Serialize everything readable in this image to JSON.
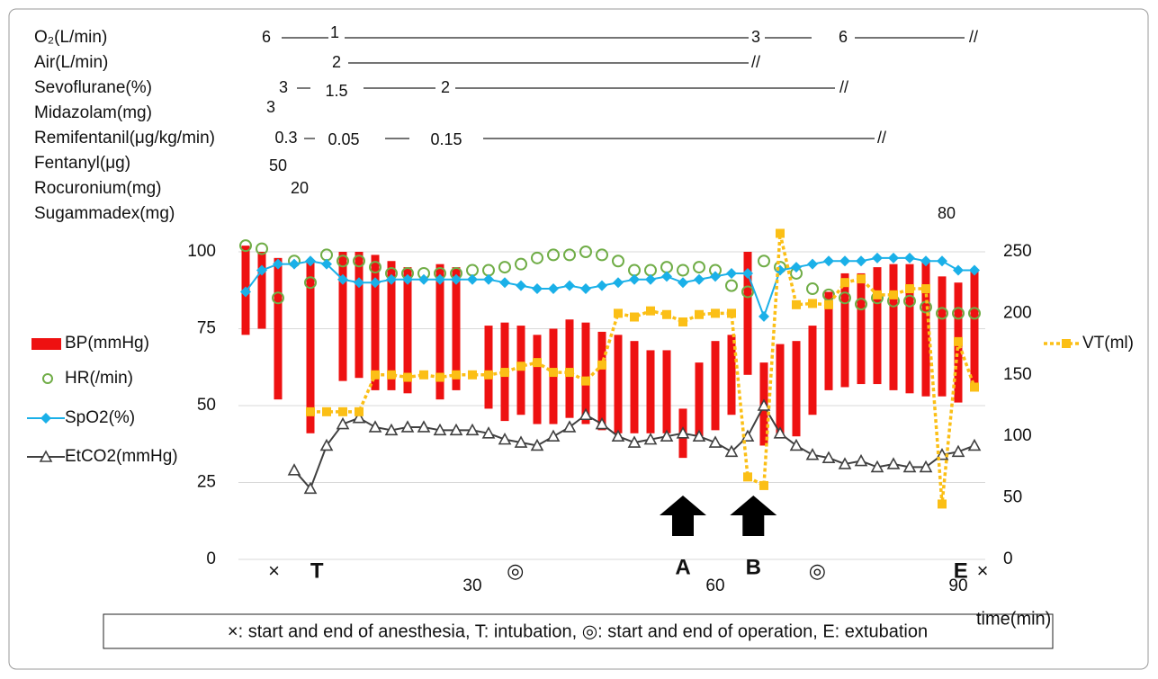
{
  "drugs": [
    {
      "name": "O₂(L/min)",
      "items": [
        "6",
        "1",
        "3",
        "6",
        "//"
      ]
    },
    {
      "name": "Air(L/min)",
      "items": [
        "2",
        "//"
      ]
    },
    {
      "name": "Sevoflurane(%)",
      "items": [
        "3",
        "1.5",
        "2",
        "//"
      ]
    },
    {
      "name": "Midazolam(mg)",
      "items": [
        "3"
      ]
    },
    {
      "name": "Remifentanil(μg/kg/min)",
      "items": [
        "0.3",
        "0.05",
        "0.15",
        "//"
      ]
    },
    {
      "name": "Fentanyl(μg)",
      "items": [
        "50"
      ]
    },
    {
      "name": "Rocuronium(mg)",
      "items": [
        "20"
      ]
    },
    {
      "name": "Sugammadex(mg)",
      "items": [
        "80"
      ]
    }
  ],
  "chart_data": {
    "type": "combo",
    "x": [
      2,
      4,
      6,
      8,
      10,
      12,
      14,
      16,
      18,
      20,
      22,
      24,
      26,
      28,
      30,
      32,
      34,
      36,
      38,
      40,
      42,
      44,
      46,
      48,
      50,
      52,
      54,
      56,
      58,
      60,
      62,
      64,
      66,
      68,
      70,
      72,
      74,
      76,
      78,
      80,
      82,
      84,
      86,
      88,
      90,
      92
    ],
    "xlim": [
      0,
      93
    ],
    "xticks": [
      30,
      60,
      90
    ],
    "xlabel": "time(min)",
    "ylim": [
      0,
      100
    ],
    "yticks": [
      0,
      25,
      50,
      75,
      100
    ],
    "y2lim": [
      0,
      250
    ],
    "y2ticks": [
      0,
      50,
      100,
      150,
      200,
      250
    ],
    "grid": true,
    "series": [
      {
        "name": "BP(mmHg)",
        "type": "range_bar",
        "color": "#ee1111",
        "high": [
          102,
          100,
          98,
          null,
          97,
          null,
          100,
          100,
          99,
          97,
          95,
          null,
          96,
          95,
          null,
          76,
          77,
          76,
          73,
          75,
          78,
          77,
          74,
          73,
          71,
          68,
          68,
          49,
          64,
          71,
          73,
          100,
          64,
          70,
          71,
          76,
          87,
          93,
          93,
          95,
          96,
          96,
          97,
          92,
          90,
          94
        ],
        "low": [
          73,
          75,
          52,
          null,
          41,
          null,
          58,
          59,
          55,
          55,
          54,
          null,
          52,
          55,
          null,
          49,
          45,
          47,
          44,
          44,
          46,
          44,
          42,
          41,
          41,
          41,
          41,
          33,
          40,
          42,
          47,
          60,
          37,
          40,
          40,
          47,
          55,
          56,
          57,
          57,
          55,
          54,
          53,
          53,
          51,
          57
        ]
      },
      {
        "name": "HR(/min)",
        "type": "scatter",
        "color": "#70ad47",
        "values": [
          102,
          101,
          85,
          97,
          90,
          99,
          97,
          97,
          95,
          93,
          93,
          93,
          93,
          93,
          94,
          94,
          95,
          96,
          98,
          99,
          99,
          100,
          99,
          97,
          94,
          94,
          95,
          94,
          95,
          94,
          89,
          87,
          97,
          95,
          93,
          88,
          86,
          85,
          83,
          85,
          84,
          84,
          82,
          80,
          80,
          80
        ]
      },
      {
        "name": "SpO2(%)",
        "type": "line",
        "color": "#1ab0e8",
        "values": [
          87,
          94,
          96,
          96,
          97,
          96,
          91,
          90,
          90,
          91,
          91,
          91,
          91,
          91,
          91,
          91,
          90,
          89,
          88,
          88,
          89,
          88,
          89,
          90,
          91,
          91,
          92,
          90,
          91,
          92,
          93,
          93,
          79,
          94,
          95,
          96,
          97,
          97,
          97,
          98,
          98,
          98,
          97,
          97,
          94,
          94
        ]
      },
      {
        "name": "EtCO2(mmHg)",
        "type": "line",
        "color": "#404040",
        "values": [
          null,
          null,
          null,
          29,
          23,
          37,
          44,
          46,
          43,
          42,
          43,
          43,
          42,
          42,
          42,
          41,
          39,
          38,
          37,
          40,
          43,
          47,
          44,
          40,
          38,
          39,
          40,
          41,
          40,
          38,
          35,
          40,
          50,
          41,
          37,
          34,
          33,
          31,
          32,
          30,
          31,
          30,
          30,
          34,
          35,
          37
        ]
      },
      {
        "name": "VT(ml)",
        "type": "line",
        "color": "#fbbf16",
        "axis": "y2",
        "values": [
          null,
          null,
          null,
          null,
          120,
          120,
          120,
          120,
          150,
          150,
          148,
          150,
          148,
          150,
          150,
          150,
          152,
          157,
          160,
          152,
          152,
          145,
          158,
          200,
          197,
          202,
          199,
          193,
          199,
          200,
          200,
          67,
          60,
          265,
          207,
          208,
          207,
          225,
          228,
          215,
          215,
          220,
          220,
          45,
          177,
          140
        ]
      }
    ],
    "annotations": [
      {
        "text": "×",
        "time": 5.5
      },
      {
        "text": "T",
        "time": 10.8,
        "bold": true
      },
      {
        "text": "◎",
        "time": 35.3
      },
      {
        "text": "A",
        "time": 56,
        "bold": true,
        "arrow": true
      },
      {
        "text": "B",
        "time": 64.7,
        "bold": true,
        "arrow": true
      },
      {
        "text": "◎",
        "time": 72.6
      },
      {
        "text": "E",
        "time": 90.3,
        "bold": true
      },
      {
        "text": "×",
        "time": 93
      }
    ],
    "footnote": "×: start and end of anesthesia, T: intubation, ◎: start and end of operation, E: extubation"
  }
}
